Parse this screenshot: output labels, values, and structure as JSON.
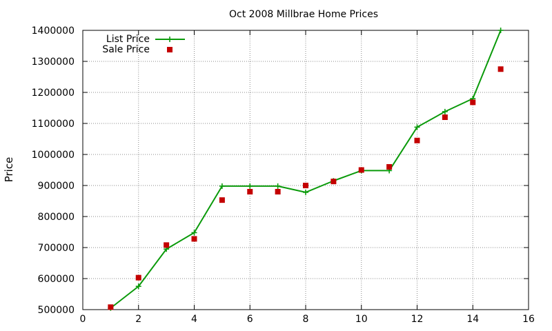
{
  "chart_data": {
    "type": "line",
    "title": "Oct 2008 Millbrae Home Prices",
    "xlabel": "",
    "ylabel": "Price",
    "xlim": [
      0,
      16
    ],
    "ylim": [
      500000,
      1400000
    ],
    "xticks": [
      0,
      2,
      4,
      6,
      8,
      10,
      12,
      14,
      16
    ],
    "yticks": [
      500000,
      600000,
      700000,
      800000,
      900000,
      1000000,
      1100000,
      1200000,
      1300000,
      1400000
    ],
    "grid": true,
    "legend": {
      "placement": "top-left",
      "entries": [
        {
          "label": "List Price",
          "style": "line-plus"
        },
        {
          "label": "Sale Price",
          "style": "square"
        }
      ]
    },
    "series": [
      {
        "name": "List Price",
        "type": "line",
        "marker": "plus",
        "color": "#0a9a0a",
        "x": [
          1,
          2,
          3,
          4,
          5,
          6,
          7,
          8,
          9,
          10,
          11,
          12,
          13,
          14,
          15
        ],
        "y": [
          505000,
          575000,
          695000,
          748000,
          898000,
          898000,
          898000,
          878000,
          915000,
          948000,
          948000,
          1088000,
          1138000,
          1180000,
          1400000
        ]
      },
      {
        "name": "Sale Price",
        "type": "scatter",
        "marker": "square",
        "color": "#c40000",
        "x": [
          1,
          2,
          3,
          4,
          5,
          6,
          7,
          8,
          9,
          10,
          11,
          12,
          13,
          14,
          15
        ],
        "y": [
          508000,
          603000,
          708000,
          728000,
          853000,
          880000,
          880000,
          900000,
          913000,
          950000,
          960000,
          1045000,
          1120000,
          1168000,
          1275000
        ]
      }
    ]
  }
}
